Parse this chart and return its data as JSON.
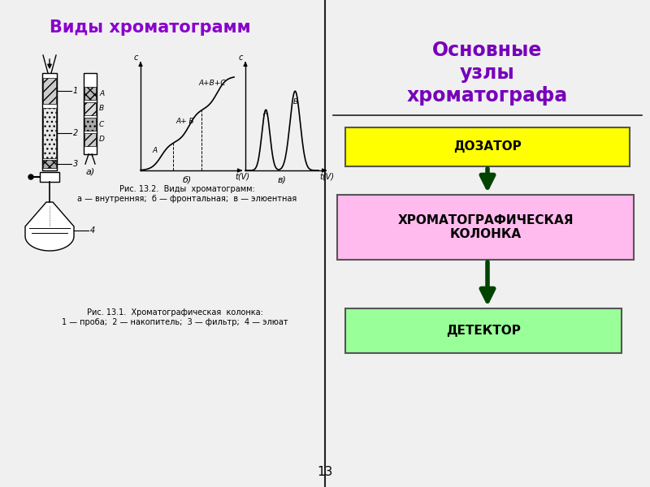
{
  "left_title": "Виды хроматограмм",
  "left_title_color": "#8800cc",
  "right_title": "Основные\nузлы\nхроматографа",
  "right_title_color": "#7700bb",
  "bg_color": "#f0f0f0",
  "divider_color": "#222222",
  "teal_circle_color": "#006060",
  "boxes": [
    {
      "label": "ДОЗАТОР",
      "bg": "#ffff00",
      "text_color": "#000000"
    },
    {
      "label": "ХРОМАТОГРАФИЧЕСКАЯ\nКОЛОНКА",
      "bg": "#ffbbee",
      "text_color": "#000000"
    },
    {
      "label": "ДЕТЕКТОР",
      "bg": "#99ff99",
      "text_color": "#000000"
    }
  ],
  "arrow_color": "#004400",
  "page_number": "13",
  "fig_caption1": "Рис. 13.2.  Виды  хроматограмм:\nа — внутренняя;  б — фронтальная;  в — элюентная",
  "fig_caption2": "Рис. 13.1.  Хроматографическая  колонка:\n1 — проба;  2 — накопитель;  3 — фильтр;  4 — элюат"
}
